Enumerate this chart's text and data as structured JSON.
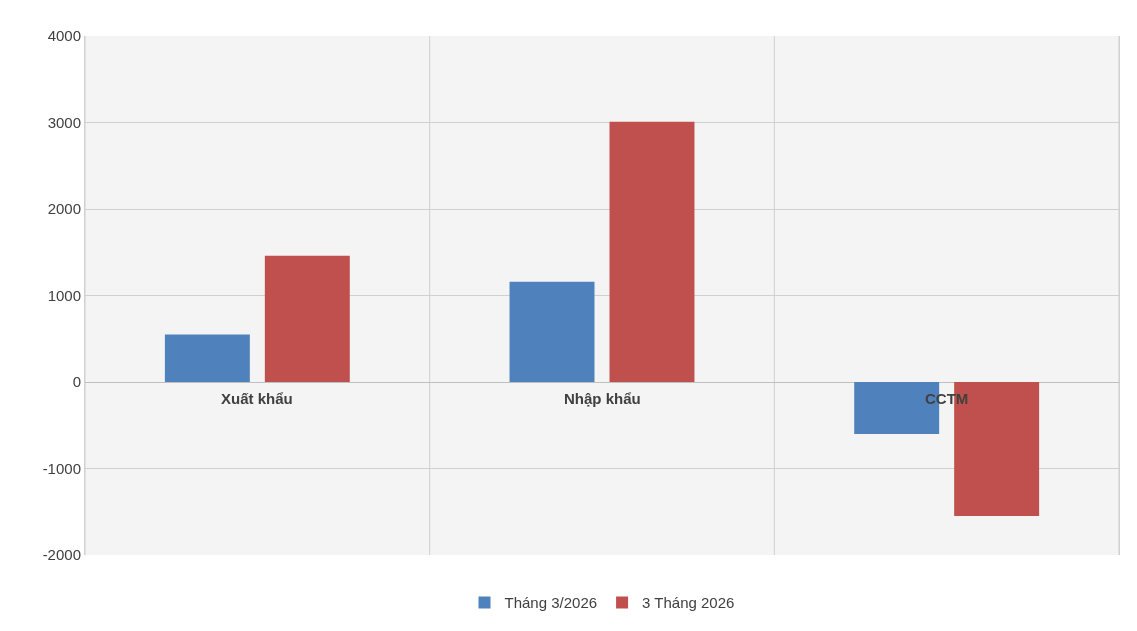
{
  "chart_data": {
    "type": "bar",
    "categories": [
      "Xuất khẩu",
      "Nhập khẩu",
      "CCTM"
    ],
    "series": [
      {
        "name": "Tháng 3/2026",
        "color": "#4f81bd",
        "values": [
          550,
          1160,
          -600
        ]
      },
      {
        "name": "3 Tháng 2026",
        "color": "#c0504d",
        "values": [
          1460,
          3010,
          -1550
        ]
      }
    ],
    "ylim": [
      -2000,
      4000
    ],
    "yticks": [
      -2000,
      -1000,
      0,
      1000,
      2000,
      3000,
      4000
    ],
    "grid": true,
    "legend": "bottom"
  }
}
